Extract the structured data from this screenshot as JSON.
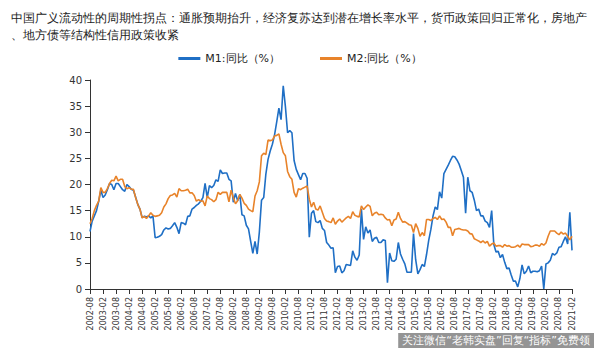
{
  "chart_data": {
    "type": "line",
    "title": "中国广义流动性的周期性拐点：通胀预期抬升，经济复苏达到潜在增长率水平，货币政策回归正常化，房地产、地方债等结构性信用政策收紧",
    "annotations": [
      "关注微信“老韩实盘”回复“指标”免费领"
    ],
    "legend": "top",
    "grid": false,
    "ylim": [
      0,
      40
    ],
    "yticks": [
      0,
      5,
      10,
      15,
      20,
      25,
      30,
      35,
      40
    ],
    "categories": [
      "2002-08",
      null,
      null,
      null,
      null,
      null,
      "2003-02",
      null,
      null,
      null,
      null,
      null,
      "2003-08",
      null,
      null,
      null,
      null,
      null,
      "2004-02",
      null,
      null,
      null,
      null,
      null,
      "2004-08",
      null,
      null,
      null,
      null,
      null,
      "2005-02",
      null,
      null,
      null,
      null,
      null,
      "2005-08",
      null,
      null,
      null,
      null,
      null,
      "2006-02",
      null,
      null,
      null,
      null,
      null,
      "2006-08",
      null,
      null,
      null,
      null,
      null,
      "2007-02",
      null,
      null,
      null,
      null,
      null,
      "2007-08",
      null,
      null,
      null,
      null,
      null,
      "2008-02",
      null,
      null,
      null,
      null,
      null,
      "2008-08",
      null,
      null,
      null,
      null,
      null,
      "2009-02",
      null,
      null,
      null,
      null,
      null,
      "2009-08",
      null,
      null,
      null,
      null,
      null,
      "2010-02",
      null,
      null,
      null,
      null,
      null,
      "2010-08",
      null,
      null,
      null,
      null,
      null,
      "2011-02",
      null,
      null,
      null,
      null,
      null,
      "2011-08",
      null,
      null,
      null,
      null,
      null,
      "2012-02",
      null,
      null,
      null,
      null,
      null,
      "2012-08",
      null,
      null,
      null,
      null,
      null,
      "2013-02",
      null,
      null,
      null,
      null,
      null,
      "2013-08",
      null,
      null,
      null,
      null,
      null,
      "2014-02",
      null,
      null,
      null,
      null,
      null,
      "2014-08",
      null,
      null,
      null,
      null,
      null,
      "2015-02",
      null,
      null,
      null,
      null,
      null,
      "2015-08",
      null,
      null,
      null,
      null,
      null,
      "2016-02",
      null,
      null,
      null,
      null,
      null,
      "2016-08",
      null,
      null,
      null,
      null,
      null,
      "2017-02",
      null,
      null,
      null,
      null,
      null,
      "2017-08",
      null,
      null,
      null,
      null,
      null,
      "2018-02",
      null,
      null,
      null,
      null,
      null,
      "2018-08",
      null,
      null,
      null,
      null,
      null,
      "2019-02",
      null,
      null,
      null,
      null,
      null,
      "2019-08",
      null,
      null,
      null,
      null,
      null,
      "2020-02",
      null,
      null,
      null,
      null,
      null,
      "2020-08",
      null,
      null,
      null,
      null,
      null,
      "2021-02"
    ],
    "series": [
      {
        "name": "M1:同比（%）",
        "color": "#1f6fc5",
        "values": [
          11.0,
          13.0,
          14.0,
          15.0,
          16.8,
          18.9,
          17.5,
          18.0,
          19.0,
          20.2,
          20.0,
          19.0,
          20.2,
          20.2,
          19.6,
          19.0,
          18.7,
          20.0,
          19.6,
          19.1,
          18.9,
          17.6,
          16.2,
          15.3,
          13.7,
          13.9,
          13.8,
          14.0,
          13.6,
          14.0,
          9.8,
          9.9,
          10.1,
          10.4,
          11.3,
          11.7,
          11.5,
          11.6,
          12.1,
          12.7,
          11.8,
          10.6,
          12.7,
          12.6,
          12.3,
          13.9,
          14.0,
          15.3,
          15.6,
          16.0,
          16.3,
          16.8,
          17.5,
          20.2,
          17.5,
          19.8,
          19.4,
          19.8,
          20.9,
          20.6,
          22.8,
          22.1,
          22.2,
          22.2,
          21.0,
          20.7,
          16.6,
          18.3,
          16.9,
          18.1,
          14.2,
          14.0,
          12.2,
          11.5,
          9.1,
          6.8,
          9.1,
          6.7,
          10.9,
          17.0,
          17.5,
          22.0,
          24.8,
          26.4,
          27.7,
          29.5,
          32.0,
          34.6,
          32.4,
          38.9,
          34.9,
          29.9,
          30.3,
          29.9,
          24.6,
          22.9,
          21.9,
          20.9,
          22.1,
          22.1,
          21.2,
          9.9,
          14.5,
          15.0,
          12.9,
          12.7,
          13.1,
          11.6,
          11.2,
          8.9,
          8.4,
          7.8,
          7.9,
          3.1,
          4.3,
          4.4,
          3.1,
          3.5,
          4.7,
          4.6,
          4.5,
          7.3,
          6.1,
          5.5,
          6.5,
          15.3,
          9.5,
          11.9,
          10.7,
          11.3,
          9.1,
          9.7,
          9.9,
          8.9,
          8.9,
          9.4,
          9.3,
          1.2,
          6.9,
          5.4,
          5.3,
          5.7,
          8.9,
          6.7,
          5.7,
          4.8,
          3.2,
          3.2,
          3.2,
          10.6,
          5.6,
          2.9,
          3.7,
          4.7,
          4.3,
          6.6,
          9.3,
          11.4,
          14.0,
          15.7,
          15.2,
          18.6,
          17.4,
          22.1,
          22.9,
          23.7,
          24.6,
          25.4,
          25.3,
          24.7,
          23.9,
          22.7,
          21.4,
          14.5,
          21.4,
          18.8,
          18.5,
          17.0,
          15.0,
          15.3,
          14.0,
          14.0,
          13.0,
          12.7,
          11.8,
          15.0,
          8.5,
          7.1,
          7.2,
          6.0,
          6.6,
          5.1,
          3.9,
          4.0,
          2.7,
          1.5,
          1.5,
          0.4,
          2.0,
          4.6,
          2.9,
          3.4,
          4.4,
          3.1,
          3.4,
          3.4,
          3.3,
          3.5,
          4.4,
          0.0,
          4.8,
          5.0,
          5.5,
          6.8,
          6.5,
          6.9,
          8.0,
          8.1,
          9.1,
          10.0,
          8.6,
          14.7,
          7.4
        ]
      },
      {
        "name": "M2:同比（%）",
        "color": "#e8832a",
        "values": [
          12.5,
          13.5,
          15.0,
          16.0,
          16.8,
          19.4,
          18.5,
          18.5,
          19.2,
          20.2,
          20.8,
          20.7,
          21.6,
          20.7,
          21.0,
          21.0,
          19.6,
          19.2,
          19.4,
          19.1,
          19.1,
          17.5,
          16.2,
          15.3,
          13.6,
          13.9,
          13.5,
          14.0,
          14.6,
          14.1,
          13.9,
          14.0,
          14.1,
          14.6,
          15.7,
          16.3,
          17.3,
          17.9,
          18.0,
          18.3,
          17.6,
          19.2,
          18.8,
          18.8,
          18.9,
          19.1,
          18.4,
          18.4,
          17.9,
          16.8,
          17.1,
          16.8,
          16.9,
          15.9,
          17.8,
          17.3,
          17.1,
          16.7,
          17.1,
          18.5,
          18.1,
          18.5,
          18.5,
          18.5,
          16.7,
          18.9,
          17.5,
          16.3,
          16.9,
          18.1,
          17.4,
          16.4,
          16.0,
          15.3,
          15.0,
          14.8,
          17.8,
          18.8,
          20.5,
          25.5,
          26.0,
          25.7,
          28.5,
          28.4,
          28.5,
          29.3,
          29.4,
          29.7,
          27.7,
          26.1,
          25.5,
          22.5,
          21.5,
          21.0,
          18.5,
          17.6,
          19.2,
          19.0,
          19.3,
          19.5,
          19.7,
          17.2,
          15.7,
          16.6,
          15.3,
          15.1,
          15.9,
          14.7,
          13.5,
          13.0,
          12.9,
          12.7,
          13.6,
          12.4,
          13.0,
          13.4,
          12.8,
          13.2,
          13.6,
          13.9,
          13.5,
          14.8,
          14.1,
          13.9,
          13.8,
          15.9,
          15.2,
          15.7,
          16.1,
          15.8,
          14.0,
          14.5,
          14.7,
          14.2,
          14.3,
          14.2,
          13.6,
          13.2,
          13.3,
          12.1,
          13.2,
          13.4,
          14.7,
          13.5,
          12.8,
          12.9,
          12.6,
          12.3,
          12.2,
          10.8,
          12.5,
          11.6,
          10.1,
          10.8,
          10.2,
          13.3,
          13.3,
          13.1,
          13.5,
          13.7,
          13.3,
          14.0,
          13.3,
          13.4,
          12.8,
          11.8,
          11.8,
          10.2,
          11.4,
          11.5,
          11.6,
          11.4,
          11.3,
          11.3,
          11.1,
          10.6,
          10.5,
          9.6,
          9.4,
          9.2,
          8.9,
          9.2,
          8.8,
          9.1,
          8.2,
          8.6,
          8.8,
          8.2,
          8.3,
          8.3,
          8.0,
          8.5,
          8.2,
          8.3,
          8.0,
          8.0,
          8.1,
          8.4,
          8.0,
          8.6,
          8.5,
          8.5,
          8.5,
          8.1,
          8.2,
          8.4,
          8.4,
          8.2,
          8.7,
          8.4,
          8.8,
          10.1,
          11.1,
          11.1,
          11.1,
          10.7,
          10.4,
          10.9,
          10.5,
          10.7,
          10.1,
          9.4,
          10.1
        ]
      }
    ]
  }
}
